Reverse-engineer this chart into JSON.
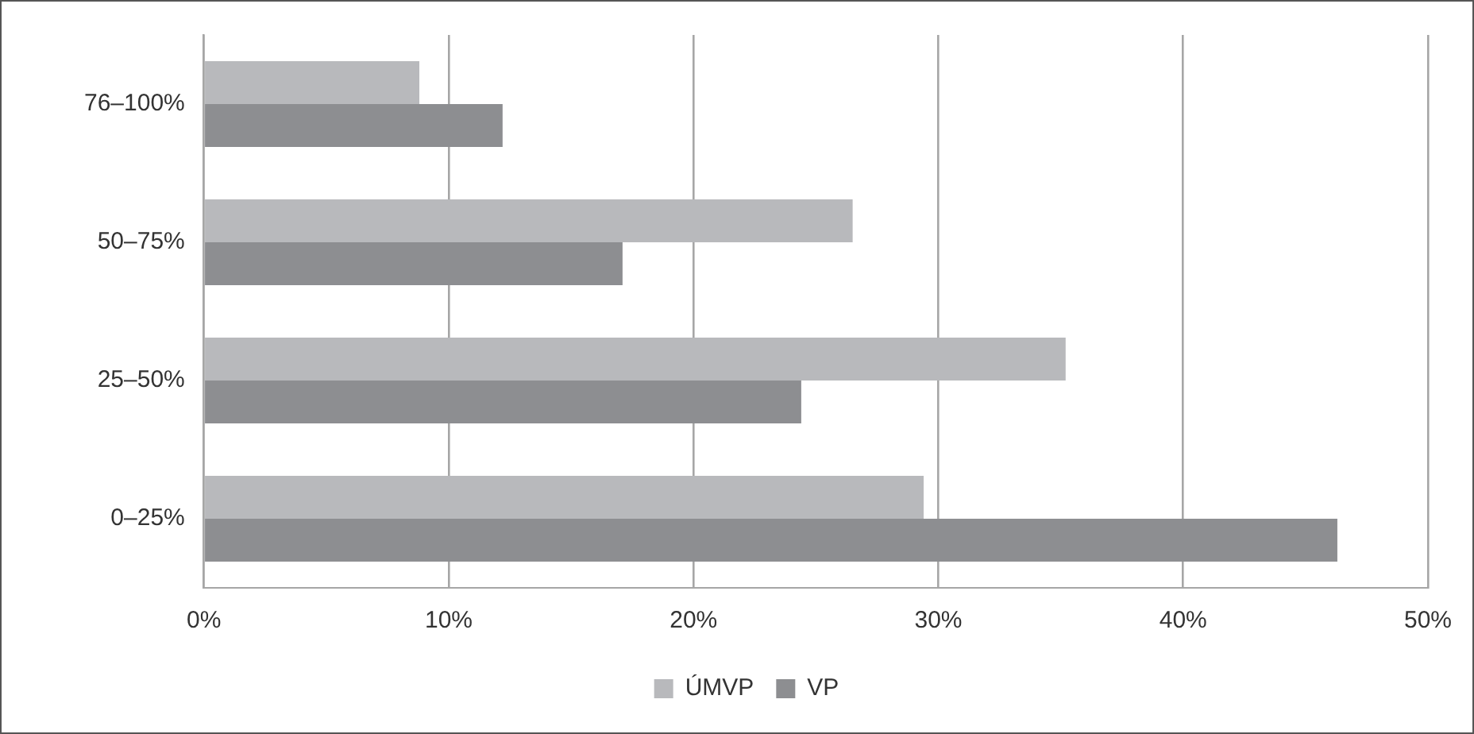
{
  "chart_data": {
    "type": "bar",
    "orientation": "horizontal",
    "categories": [
      "76–100%",
      "50–75%",
      "25–50%",
      "0–25%"
    ],
    "series": [
      {
        "name": "ÚMVP",
        "color": "#b8b9bc",
        "values": [
          8.8,
          26.5,
          35.2,
          29.4
        ]
      },
      {
        "name": "VP",
        "color": "#8d8e91",
        "values": [
          12.2,
          17.1,
          24.4,
          46.3
        ]
      }
    ],
    "xlim": [
      0,
      50
    ],
    "xticks": [
      {
        "value": 0,
        "label": "0%"
      },
      {
        "value": 10,
        "label": "10%"
      },
      {
        "value": 20,
        "label": "20%"
      },
      {
        "value": 30,
        "label": "30%"
      },
      {
        "value": 40,
        "label": "40%"
      },
      {
        "value": 50,
        "label": "50%"
      }
    ],
    "grid": "x",
    "legend": "bottom"
  }
}
